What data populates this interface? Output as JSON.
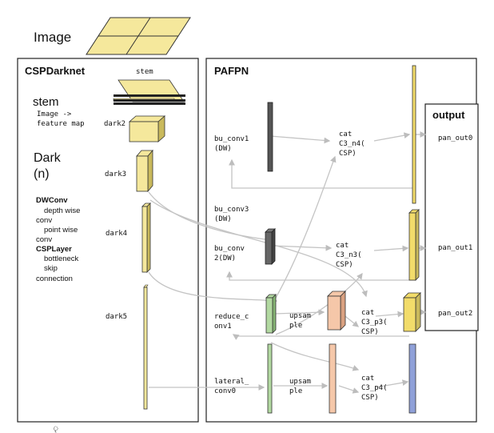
{
  "header": {
    "image_label": "Image"
  },
  "backbone": {
    "title": "CSPDarknet",
    "stem_caption": "stem",
    "stem_heading": "stem",
    "stem_desc_1": "Image ->",
    "stem_desc_2": "feature map",
    "dark_heading_1": "Dark",
    "dark_heading_2": "(n)",
    "legend": [
      {
        "text": "DWConv",
        "bold": true
      },
      {
        "text": "depth wise",
        "bold": false
      },
      {
        "text": "conv",
        "bold": false
      },
      {
        "text": "point wise",
        "bold": false
      },
      {
        "text": "conv",
        "bold": false
      },
      {
        "text": "CSPLayer",
        "bold": true
      },
      {
        "text": "bottleneck",
        "bold": false
      },
      {
        "text": "skip",
        "bold": false
      },
      {
        "text": "connection",
        "bold": false
      }
    ],
    "stages": [
      "dark2",
      "dark3",
      "dark4",
      "dark5"
    ]
  },
  "neck": {
    "title": "PAFPN",
    "bu_conv1": [
      "bu_conv1",
      "(DW)"
    ],
    "bu_conv3": [
      "bu_conv3",
      "(DW)"
    ],
    "bu_conv2": [
      "bu_conv",
      "2(DW)"
    ],
    "reduce_conv1": [
      "reduce_c",
      "onv1"
    ],
    "lateral_conv0": [
      "lateral_",
      "conv0"
    ],
    "upsample_1": [
      "upsam",
      "ple"
    ],
    "upsample_2": [
      "upsam",
      "ple"
    ],
    "cat_n4": [
      "cat",
      "C3_n4(",
      "CSP)"
    ],
    "cat_n3": [
      "cat",
      "C3_n3(",
      "CSP)"
    ],
    "cat_p3": [
      "cat",
      "C3_p3(",
      "CSP)"
    ],
    "cat_p4": [
      "cat",
      "C3_p4(",
      "CSP)"
    ]
  },
  "output": {
    "title": "output",
    "items": [
      "pan_out0",
      "pan_out1",
      "pan_out2"
    ]
  },
  "footer_fragment": "ৄ",
  "colors": {
    "yellow": "#f5e89c",
    "yellow_side": "#c9b95c",
    "bright_yellow": "#f2dc6a",
    "dark_gray": "#555555",
    "green": "#b2d9a1",
    "peach": "#f5c7a9",
    "blue": "#8fa0d8",
    "connector": "#c4c4c4"
  }
}
